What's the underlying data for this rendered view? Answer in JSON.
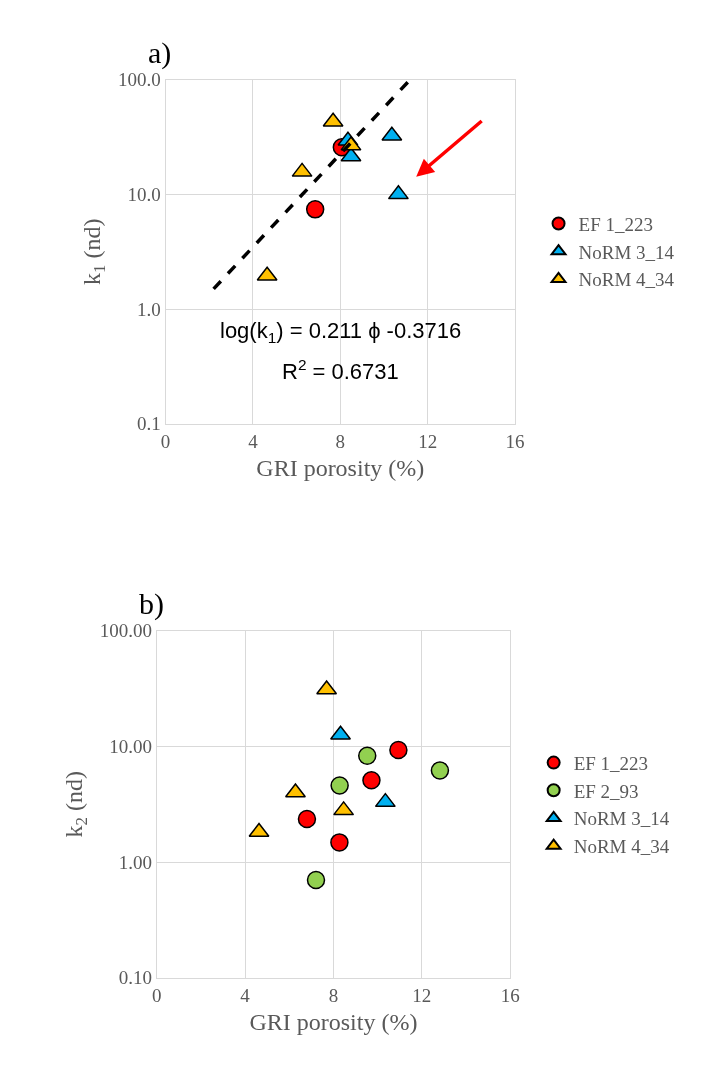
{
  "chart_data": [
    {
      "type": "scatter",
      "title": "a)",
      "xlabel": "GRI porosity (%)",
      "ylabel": "k$_{1}$ (nd)",
      "log": "y",
      "grid": true,
      "legend": "right",
      "xlim": [
        0,
        16
      ],
      "xticks": [
        0,
        4,
        8,
        12,
        16
      ],
      "ylim": [
        0.1,
        100
      ],
      "yticks": [
        {
          "value": 0.1,
          "label": "0.1"
        },
        {
          "value": 1,
          "label": "1.0"
        },
        {
          "value": 10,
          "label": "10.0"
        },
        {
          "value": 100,
          "label": "100.0"
        }
      ],
      "series": [
        {
          "name": "EF 1_223",
          "color": "#ff0000",
          "marker": "circle",
          "x": [
            6.85,
            8.07
          ],
          "values": [
            7.4,
            25.7
          ]
        },
        {
          "name": "NoRM 3_14",
          "color": "#00b0f0",
          "marker": "triangle",
          "x": [
            8.35,
            8.49,
            10.36,
            10.66
          ],
          "values": [
            29.3,
            21.4,
            32.4,
            10
          ]
        },
        {
          "name": "NoRM 4_34",
          "color": "#ffc000",
          "marker": "triangle",
          "x": [
            4.65,
            6.25,
            7.67,
            8.49
          ],
          "values": [
            1.95,
            15.7,
            43,
            26.6
          ]
        },
        {
          "type": "line",
          "color": "#000000",
          "marker": "none",
          "line_style": "dashed",
          "x": [
            2.2,
            11.2
          ],
          "values": [
            1.5,
            100
          ]
        }
      ],
      "annotations": [
        "log(k$_{1}$) = 0.211 ϕ -0.3716",
        "R$^{2}$ = 0.6731"
      ]
    },
    {
      "type": "scatter",
      "title": "b)",
      "xlabel": "GRI porosity (%)",
      "ylabel": "k$_{2}$ (nd)",
      "log": "y",
      "grid": true,
      "legend": "right",
      "xlim": [
        0,
        16
      ],
      "xticks": [
        0,
        4,
        8,
        12,
        16
      ],
      "ylim": [
        0.1,
        100
      ],
      "yticks": [
        {
          "value": 0.1,
          "label": "0.10"
        },
        {
          "value": 1,
          "label": "1.00"
        },
        {
          "value": 10,
          "label": "10.00"
        },
        {
          "value": 100,
          "label": "100.00"
        }
      ],
      "series": [
        {
          "name": "EF 1_223",
          "color": "#ff0000",
          "marker": "circle",
          "x": [
            6.8,
            8.27,
            9.72,
            10.94
          ],
          "values": [
            2.36,
            1.48,
            5.1,
            9.3
          ]
        },
        {
          "name": "EF 2_93",
          "color": "#92d050",
          "marker": "circle",
          "x": [
            7.21,
            8.28,
            9.53,
            12.82
          ],
          "values": [
            0.7,
            4.6,
            8.3,
            6.2
          ]
        },
        {
          "name": "NoRM 3_14",
          "color": "#00b0f0",
          "marker": "triangle",
          "x": [
            8.32,
            10.35
          ],
          "values": [
            12.6,
            3.3
          ]
        },
        {
          "name": "NoRM 4_34",
          "color": "#ffc000",
          "marker": "triangle",
          "x": [
            4.63,
            6.28,
            7.69,
            8.46
          ],
          "values": [
            1.82,
            4.0,
            31,
            2.8
          ]
        }
      ]
    }
  ]
}
